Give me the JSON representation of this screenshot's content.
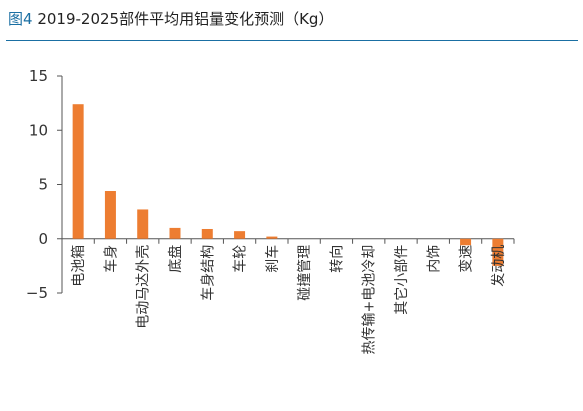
{
  "title": {
    "figure_label": "图4",
    "text": "2019-2025部件平均用铝量变化预测（Kg）"
  },
  "chart_data": {
    "type": "bar",
    "title": "2019-2025部件平均用铝量变化预测（Kg）",
    "categories": [
      "电池箱",
      "车身",
      "电动马达外壳",
      "底盘",
      "车身结构",
      "车轮",
      "刹车",
      "碰撞管理",
      "转向",
      "热传输+电池冷却",
      "其它小部件",
      "内饰",
      "变速",
      "发动机"
    ],
    "values": [
      12.4,
      4.4,
      2.7,
      1.0,
      0.9,
      0.7,
      0.2,
      0,
      0,
      0,
      0,
      0,
      -0.6,
      -2.5
    ],
    "ylim": [
      -5,
      15
    ],
    "yticks": [
      15,
      10,
      5,
      0,
      -5
    ],
    "ytick_labels": [
      "15",
      "10",
      "5",
      "0",
      "−5"
    ],
    "xlabel": "",
    "ylabel": "",
    "bar_color": "#ed7d31",
    "axis_color": "#555555",
    "grid": false,
    "legend": "none"
  }
}
